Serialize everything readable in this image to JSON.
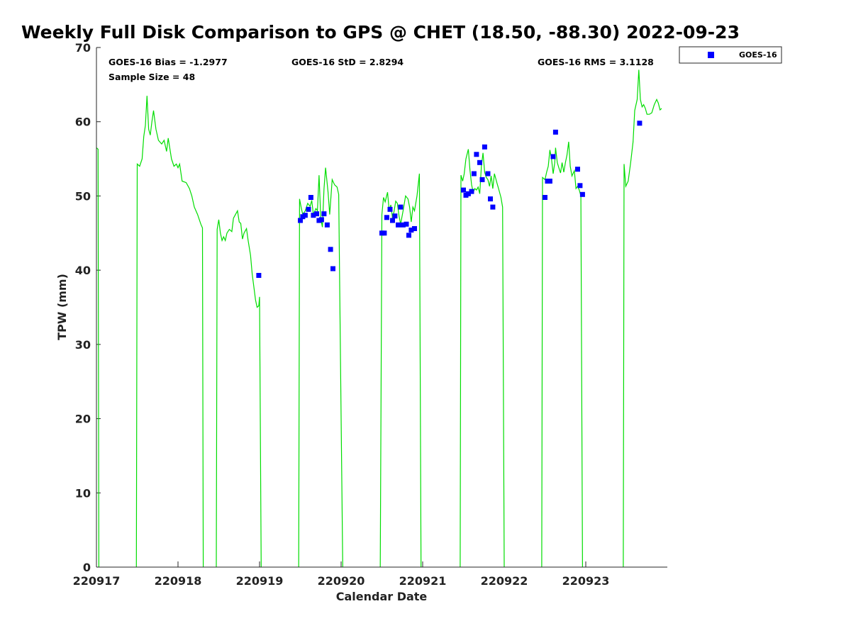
{
  "chart_data": {
    "type": "scatter",
    "title": "Weekly Full Disk Comparison to GPS @ CHET (18.50, -88.30) 2022-09-23",
    "xlabel": "Calendar Date",
    "ylabel": "TPW (mm)",
    "xlim": [
      0,
      7
    ],
    "ylim": [
      0,
      70
    ],
    "x_ticks": [
      {
        "value": 0,
        "label": "220917"
      },
      {
        "value": 1,
        "label": "220918"
      },
      {
        "value": 2,
        "label": "220919"
      },
      {
        "value": 3,
        "label": "220920"
      },
      {
        "value": 4,
        "label": "220921"
      },
      {
        "value": 5,
        "label": "220922"
      },
      {
        "value": 6,
        "label": "220923"
      }
    ],
    "y_ticks": [
      0,
      10,
      20,
      30,
      40,
      50,
      60,
      70
    ],
    "grid": false,
    "legend": {
      "placement": "outside-top-right",
      "entries": [
        "GOES-16"
      ]
    },
    "stats": {
      "bias": "GOES-16 Bias = -1.2977",
      "std": "GOES-16 StD = 2.8294",
      "rms": "GOES-16 RMS = 3.1128",
      "sample": "Sample Size = 48"
    },
    "series": [
      {
        "name": "GPS",
        "kind": "line",
        "color": "#00dd00",
        "segments": [
          [
            [
              0.0,
              56.5
            ],
            [
              0.02,
              56.3
            ],
            [
              0.03,
              0
            ]
          ],
          [
            [
              0.49,
              0
            ],
            [
              0.5,
              54.3
            ],
            [
              0.53,
              54
            ],
            [
              0.56,
              55
            ],
            [
              0.58,
              58
            ],
            [
              0.6,
              59.5
            ],
            [
              0.62,
              63.5
            ],
            [
              0.64,
              59
            ],
            [
              0.66,
              58.2
            ],
            [
              0.68,
              60
            ],
            [
              0.7,
              61.5
            ],
            [
              0.73,
              59
            ],
            [
              0.76,
              57.5
            ],
            [
              0.8,
              57
            ],
            [
              0.83,
              57.5
            ],
            [
              0.86,
              56
            ],
            [
              0.88,
              57.8
            ],
            [
              0.92,
              55
            ],
            [
              0.95,
              54
            ],
            [
              0.98,
              54.3
            ],
            [
              1.0,
              53.8
            ],
            [
              1.02,
              54.3
            ],
            [
              1.05,
              52
            ],
            [
              1.1,
              51.8
            ],
            [
              1.14,
              51
            ],
            [
              1.17,
              50
            ],
            [
              1.2,
              48.5
            ],
            [
              1.24,
              47.5
            ],
            [
              1.28,
              46.2
            ],
            [
              1.3,
              45.7
            ],
            [
              1.31,
              0
            ]
          ],
          [
            [
              1.47,
              0
            ],
            [
              1.48,
              45.5
            ],
            [
              1.5,
              46.8
            ],
            [
              1.52,
              45
            ],
            [
              1.54,
              44
            ],
            [
              1.56,
              44.5
            ],
            [
              1.58,
              44
            ],
            [
              1.6,
              45
            ],
            [
              1.63,
              45.5
            ],
            [
              1.66,
              45.2
            ],
            [
              1.68,
              47
            ],
            [
              1.71,
              47.6
            ],
            [
              1.73,
              48
            ],
            [
              1.75,
              46.5
            ],
            [
              1.77,
              46.3
            ],
            [
              1.79,
              44.2
            ],
            [
              1.81,
              45
            ],
            [
              1.84,
              45.6
            ],
            [
              1.86,
              44
            ],
            [
              1.89,
              42
            ],
            [
              1.91,
              39.5
            ],
            [
              1.93,
              37.8
            ],
            [
              1.95,
              36
            ],
            [
              1.97,
              35
            ],
            [
              1.99,
              35.2
            ],
            [
              2.0,
              36.4
            ],
            [
              2.02,
              0
            ]
          ],
          [
            [
              2.48,
              0
            ],
            [
              2.49,
              49.6
            ],
            [
              2.51,
              48.5
            ],
            [
              2.53,
              47.5
            ],
            [
              2.56,
              48
            ],
            [
              2.59,
              49
            ],
            [
              2.62,
              48.6
            ],
            [
              2.64,
              49.4
            ],
            [
              2.66,
              47.5
            ],
            [
              2.69,
              48.3
            ],
            [
              2.71,
              48
            ],
            [
              2.73,
              52.8
            ],
            [
              2.75,
              47
            ],
            [
              2.77,
              45.8
            ],
            [
              2.79,
              51
            ],
            [
              2.81,
              53.8
            ],
            [
              2.84,
              50.5
            ],
            [
              2.86,
              47.5
            ],
            [
              2.89,
              52.2
            ],
            [
              2.92,
              51.5
            ],
            [
              2.95,
              51.2
            ],
            [
              2.97,
              50.2
            ],
            [
              3.02,
              0
            ]
          ],
          [
            [
              3.48,
              0
            ],
            [
              3.5,
              47.5
            ],
            [
              3.52,
              49.8
            ],
            [
              3.54,
              49.2
            ],
            [
              3.57,
              50.5
            ],
            [
              3.59,
              48
            ],
            [
              3.61,
              48.8
            ],
            [
              3.63,
              47
            ],
            [
              3.65,
              48
            ],
            [
              3.67,
              49.3
            ],
            [
              3.69,
              49
            ],
            [
              3.71,
              47.3
            ],
            [
              3.73,
              46.2
            ],
            [
              3.76,
              48
            ],
            [
              3.79,
              50
            ],
            [
              3.82,
              49.6
            ],
            [
              3.84,
              48.5
            ],
            [
              3.86,
              46.5
            ],
            [
              3.88,
              48.5
            ],
            [
              3.9,
              48
            ],
            [
              3.93,
              50
            ],
            [
              3.96,
              53
            ],
            [
              3.98,
              0
            ]
          ],
          [
            [
              4.46,
              0
            ],
            [
              4.47,
              52.8
            ],
            [
              4.49,
              52
            ],
            [
              4.51,
              53
            ],
            [
              4.53,
              55
            ],
            [
              4.56,
              56.3
            ],
            [
              4.58,
              53.5
            ],
            [
              4.6,
              51.5
            ],
            [
              4.62,
              50.5
            ],
            [
              4.64,
              51
            ],
            [
              4.66,
              50.8
            ],
            [
              4.68,
              51.2
            ],
            [
              4.7,
              50.3
            ],
            [
              4.72,
              54
            ],
            [
              4.74,
              55.8
            ],
            [
              4.76,
              53.2
            ],
            [
              4.78,
              52.5
            ],
            [
              4.8,
              52.2
            ],
            [
              4.82,
              51.3
            ],
            [
              4.84,
              52.7
            ],
            [
              4.86,
              51
            ],
            [
              4.88,
              53
            ],
            [
              4.91,
              51.8
            ],
            [
              4.93,
              51
            ],
            [
              4.96,
              49.8
            ],
            [
              4.98,
              48.5
            ],
            [
              5.0,
              0
            ]
          ],
          [
            [
              5.46,
              0
            ],
            [
              5.47,
              52.5
            ],
            [
              5.5,
              52.2
            ],
            [
              5.52,
              53.2
            ],
            [
              5.54,
              54
            ],
            [
              5.56,
              56.2
            ],
            [
              5.58,
              55
            ],
            [
              5.6,
              53
            ],
            [
              5.62,
              54.5
            ],
            [
              5.63,
              56.5
            ],
            [
              5.65,
              54.5
            ],
            [
              5.67,
              53.8
            ],
            [
              5.69,
              53.1
            ],
            [
              5.71,
              54.5
            ],
            [
              5.73,
              53.2
            ],
            [
              5.75,
              54.5
            ],
            [
              5.77,
              55.5
            ],
            [
              5.79,
              57.3
            ],
            [
              5.81,
              54
            ],
            [
              5.83,
              52.7
            ],
            [
              5.86,
              53.4
            ],
            [
              5.88,
              51
            ],
            [
              5.9,
              51.3
            ],
            [
              5.92,
              50.8
            ],
            [
              5.94,
              50
            ],
            [
              5.96,
              0
            ]
          ],
          [
            [
              6.46,
              0
            ],
            [
              6.47,
              54.3
            ],
            [
              6.49,
              51.3
            ],
            [
              6.52,
              52
            ],
            [
              6.55,
              54.5
            ],
            [
              6.58,
              57.3
            ],
            [
              6.6,
              61.5
            ],
            [
              6.63,
              63
            ],
            [
              6.65,
              67
            ],
            [
              6.67,
              63
            ],
            [
              6.69,
              62
            ],
            [
              6.71,
              62.3
            ],
            [
              6.73,
              61.8
            ],
            [
              6.75,
              61
            ],
            [
              6.78,
              61
            ],
            [
              6.81,
              61.2
            ],
            [
              6.84,
              62.3
            ],
            [
              6.87,
              63
            ],
            [
              6.89,
              62.5
            ],
            [
              6.91,
              61.6
            ],
            [
              6.93,
              61.8
            ]
          ]
        ]
      },
      {
        "name": "GOES-16",
        "kind": "scatter",
        "color": "#0000ff",
        "points": [
          [
            1.99,
            39.3
          ],
          [
            2.5,
            46.7
          ],
          [
            2.53,
            47.2
          ],
          [
            2.56,
            47.4
          ],
          [
            2.6,
            48.2
          ],
          [
            2.63,
            49.8
          ],
          [
            2.66,
            47.4
          ],
          [
            2.7,
            47.6
          ],
          [
            2.73,
            46.7
          ],
          [
            2.76,
            46.8
          ],
          [
            2.79,
            47.6
          ],
          [
            2.83,
            46.1
          ],
          [
            2.87,
            42.8
          ],
          [
            2.9,
            40.2
          ],
          [
            3.5,
            45
          ],
          [
            3.53,
            45
          ],
          [
            3.56,
            47.1
          ],
          [
            3.6,
            48.2
          ],
          [
            3.63,
            46.7
          ],
          [
            3.66,
            47.3
          ],
          [
            3.7,
            46.1
          ],
          [
            3.73,
            48.5
          ],
          [
            3.76,
            46.1
          ],
          [
            3.8,
            46.2
          ],
          [
            3.83,
            44.7
          ],
          [
            3.86,
            45.4
          ],
          [
            3.9,
            45.6
          ],
          [
            4.5,
            50.8
          ],
          [
            4.53,
            50.1
          ],
          [
            4.56,
            50.3
          ],
          [
            4.6,
            50.6
          ],
          [
            4.63,
            53
          ],
          [
            4.66,
            55.6
          ],
          [
            4.7,
            54.5
          ],
          [
            4.73,
            52.2
          ],
          [
            4.76,
            56.6
          ],
          [
            4.8,
            53
          ],
          [
            4.83,
            49.6
          ],
          [
            4.86,
            48.5
          ],
          [
            5.5,
            49.8
          ],
          [
            5.53,
            52
          ],
          [
            5.56,
            52
          ],
          [
            5.6,
            55.3
          ],
          [
            5.63,
            58.6
          ],
          [
            5.9,
            53.6
          ],
          [
            5.93,
            51.4
          ],
          [
            5.96,
            50.2
          ],
          [
            6.66,
            59.8
          ]
        ]
      }
    ]
  }
}
